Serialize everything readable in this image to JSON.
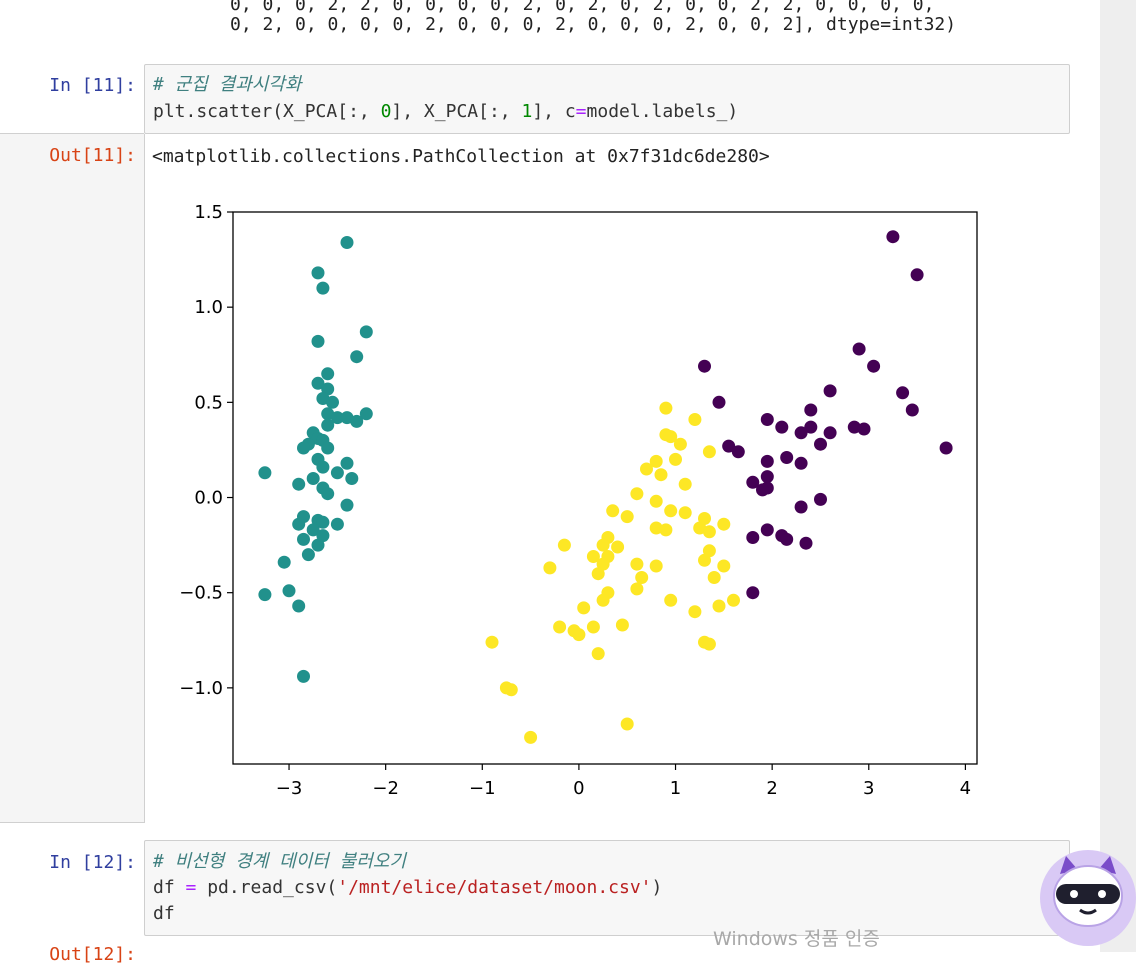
{
  "cell_prev_output": {
    "line1": "0, 0, 0, 2, 2, 0, 0, 0, 0, 2, 0, 2, 0, 2, 0, 0, 2, 2, 0, 0, 0, 0,",
    "line2": "0, 2, 0, 0, 0, 0, 2, 0, 0, 0, 2, 0, 0, 0, 2, 0, 0, 2], dtype=int32)"
  },
  "cell_11": {
    "in_prompt": "In [11]:",
    "comment": "# 군집 결과시각화",
    "code": {
      "prefix": "plt.scatter(X_PCA[:, ",
      "n0": "0",
      "mid": "], X_PCA[:, ",
      "n1": "1",
      "mid2": "], c",
      "eq": "=",
      "suffix": "model.labels_)"
    },
    "out_prompt": "Out[11]:",
    "out_text": "<matplotlib.collections.PathCollection at 0x7f31dc6de280>"
  },
  "cell_12": {
    "in_prompt": "In [12]:",
    "comment": "# 비선형 경계 데이터 불러오기",
    "code_line1": {
      "prefix": "df ",
      "eq": "=",
      "mid": " pd.read_csv(",
      "str": "'/mnt/elice/dataset/moon.csv'",
      "suffix": ")"
    },
    "code_line2": "df",
    "out_prompt": "Out[12]:"
  },
  "watermark": "Windows 정품 인증",
  "chart_data": {
    "type": "scatter",
    "title": "",
    "xlabel": "",
    "ylabel": "",
    "xlim": [
      -3.58,
      4.12
    ],
    "ylim": [
      -1.4,
      1.5
    ],
    "x_ticks": [
      -3,
      -2,
      -1,
      0,
      1,
      2,
      3,
      4
    ],
    "x_tick_labels": [
      "−3",
      "−2",
      "−1",
      "0",
      "1",
      "2",
      "3",
      "4"
    ],
    "y_ticks": [
      -1.0,
      -0.5,
      0.0,
      0.5,
      1.0,
      1.5
    ],
    "y_tick_labels": [
      "−1.0",
      "−0.5",
      "0.0",
      "0.5",
      "1.0",
      "1.5"
    ],
    "grid": false,
    "series": [
      {
        "color": "#21918c",
        "points": [
          [
            -2.4,
            1.34
          ],
          [
            -2.7,
            1.18
          ],
          [
            -2.65,
            1.1
          ],
          [
            -2.2,
            0.87
          ],
          [
            -2.7,
            0.82
          ],
          [
            -2.3,
            0.74
          ],
          [
            -2.6,
            0.65
          ],
          [
            -2.7,
            0.6
          ],
          [
            -2.6,
            0.57
          ],
          [
            -2.65,
            0.52
          ],
          [
            -2.55,
            0.5
          ],
          [
            -2.6,
            0.44
          ],
          [
            -2.5,
            0.42
          ],
          [
            -2.4,
            0.42
          ],
          [
            -2.2,
            0.44
          ],
          [
            -2.3,
            0.4
          ],
          [
            -2.6,
            0.38
          ],
          [
            -2.75,
            0.34
          ],
          [
            -2.7,
            0.31
          ],
          [
            -2.65,
            0.3
          ],
          [
            -2.8,
            0.28
          ],
          [
            -2.85,
            0.26
          ],
          [
            -2.6,
            0.26
          ],
          [
            -2.7,
            0.2
          ],
          [
            -2.4,
            0.18
          ],
          [
            -2.65,
            0.16
          ],
          [
            -2.5,
            0.13
          ],
          [
            -3.25,
            0.13
          ],
          [
            -2.35,
            0.1
          ],
          [
            -2.75,
            0.1
          ],
          [
            -2.65,
            0.05
          ],
          [
            -2.9,
            0.07
          ],
          [
            -2.6,
            0.02
          ],
          [
            -2.4,
            -0.04
          ],
          [
            -2.85,
            -0.1
          ],
          [
            -2.7,
            -0.12
          ],
          [
            -2.65,
            -0.13
          ],
          [
            -2.5,
            -0.14
          ],
          [
            -2.9,
            -0.14
          ],
          [
            -2.75,
            -0.17
          ],
          [
            -2.65,
            -0.2
          ],
          [
            -2.85,
            -0.22
          ],
          [
            -2.7,
            -0.25
          ],
          [
            -2.8,
            -0.3
          ],
          [
            -3.05,
            -0.34
          ],
          [
            -3.0,
            -0.49
          ],
          [
            -3.25,
            -0.51
          ],
          [
            -2.9,
            -0.57
          ],
          [
            -2.85,
            -0.94
          ]
        ]
      },
      {
        "color": "#440154",
        "points": [
          [
            3.25,
            1.37
          ],
          [
            3.5,
            1.17
          ],
          [
            2.9,
            0.78
          ],
          [
            3.05,
            0.69
          ],
          [
            1.3,
            0.69
          ],
          [
            2.6,
            0.56
          ],
          [
            3.35,
            0.55
          ],
          [
            1.45,
            0.5
          ],
          [
            3.45,
            0.46
          ],
          [
            2.4,
            0.46
          ],
          [
            1.95,
            0.41
          ],
          [
            2.1,
            0.37
          ],
          [
            2.4,
            0.37
          ],
          [
            2.3,
            0.34
          ],
          [
            2.85,
            0.37
          ],
          [
            2.95,
            0.36
          ],
          [
            2.6,
            0.34
          ],
          [
            2.5,
            0.28
          ],
          [
            1.55,
            0.27
          ],
          [
            1.65,
            0.24
          ],
          [
            3.8,
            0.26
          ],
          [
            2.15,
            0.21
          ],
          [
            1.95,
            0.19
          ],
          [
            2.3,
            0.18
          ],
          [
            1.95,
            0.11
          ],
          [
            1.8,
            0.08
          ],
          [
            1.95,
            0.05
          ],
          [
            1.9,
            0.04
          ],
          [
            2.5,
            -0.01
          ],
          [
            2.3,
            -0.05
          ],
          [
            1.95,
            -0.17
          ],
          [
            2.1,
            -0.2
          ],
          [
            1.8,
            -0.21
          ],
          [
            2.15,
            -0.22
          ],
          [
            2.35,
            -0.24
          ],
          [
            1.8,
            -0.5
          ]
        ]
      },
      {
        "color": "#fde725",
        "points": [
          [
            0.9,
            0.47
          ],
          [
            1.2,
            0.41
          ],
          [
            0.9,
            0.33
          ],
          [
            0.95,
            0.32
          ],
          [
            1.05,
            0.28
          ],
          [
            1.35,
            0.24
          ],
          [
            1.0,
            0.2
          ],
          [
            0.8,
            0.19
          ],
          [
            0.7,
            0.15
          ],
          [
            0.85,
            0.12
          ],
          [
            1.1,
            0.07
          ],
          [
            0.6,
            0.02
          ],
          [
            0.8,
            -0.02
          ],
          [
            0.35,
            -0.07
          ],
          [
            0.95,
            -0.07
          ],
          [
            0.5,
            -0.1
          ],
          [
            1.1,
            -0.08
          ],
          [
            1.3,
            -0.11
          ],
          [
            1.5,
            -0.14
          ],
          [
            0.8,
            -0.16
          ],
          [
            0.9,
            -0.17
          ],
          [
            1.25,
            -0.16
          ],
          [
            1.35,
            -0.18
          ],
          [
            0.3,
            -0.21
          ],
          [
            0.25,
            -0.25
          ],
          [
            0.4,
            -0.26
          ],
          [
            -0.15,
            -0.25
          ],
          [
            1.35,
            -0.28
          ],
          [
            0.15,
            -0.31
          ],
          [
            0.3,
            -0.31
          ],
          [
            1.3,
            -0.33
          ],
          [
            0.25,
            -0.35
          ],
          [
            0.6,
            -0.35
          ],
          [
            0.8,
            -0.36
          ],
          [
            1.5,
            -0.36
          ],
          [
            -0.3,
            -0.37
          ],
          [
            0.2,
            -0.4
          ],
          [
            0.65,
            -0.42
          ],
          [
            1.4,
            -0.42
          ],
          [
            0.3,
            -0.5
          ],
          [
            0.6,
            -0.48
          ],
          [
            0.25,
            -0.54
          ],
          [
            1.6,
            -0.54
          ],
          [
            0.95,
            -0.54
          ],
          [
            1.45,
            -0.57
          ],
          [
            0.05,
            -0.58
          ],
          [
            1.2,
            -0.6
          ],
          [
            0.45,
            -0.67
          ],
          [
            -0.2,
            -0.68
          ],
          [
            0.15,
            -0.68
          ],
          [
            -0.05,
            -0.7
          ],
          [
            0.0,
            -0.72
          ],
          [
            1.3,
            -0.76
          ],
          [
            1.35,
            -0.77
          ],
          [
            -0.9,
            -0.76
          ],
          [
            0.2,
            -0.82
          ],
          [
            -0.75,
            -1.0
          ],
          [
            -0.7,
            -1.01
          ],
          [
            0.5,
            -1.19
          ],
          [
            -0.5,
            -1.26
          ]
        ]
      }
    ]
  }
}
